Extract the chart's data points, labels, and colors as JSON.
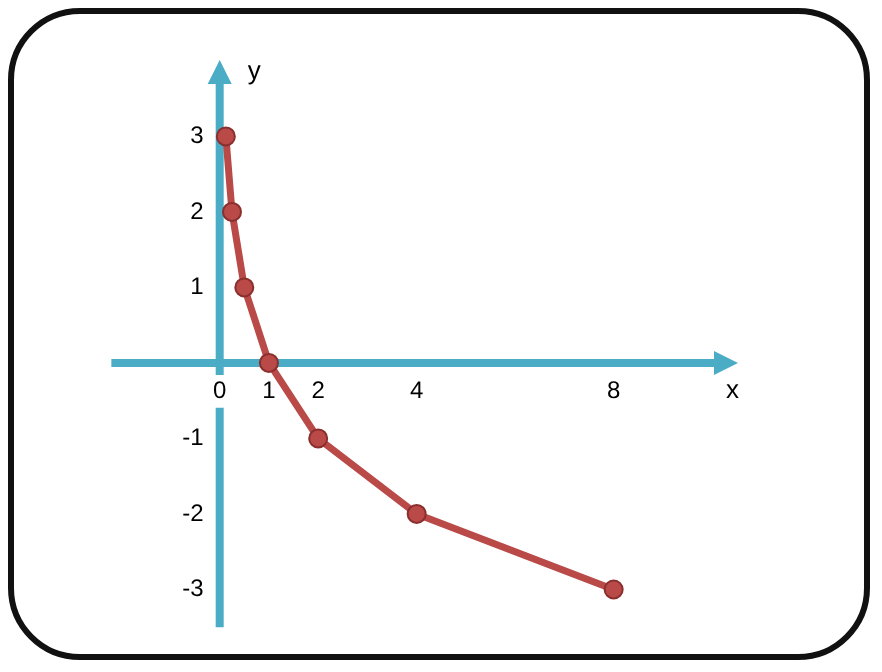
{
  "chart_data": {
    "type": "line",
    "xlabel": "x",
    "ylabel": "y",
    "x": [
      0.125,
      0.25,
      0.5,
      1,
      2,
      4,
      8
    ],
    "series": [
      {
        "color": "#b94a48",
        "values": [
          3,
          2,
          1,
          0,
          -1,
          -2,
          -3
        ]
      }
    ],
    "xlim": [
      -2.2,
      10.2
    ],
    "ylim": [
      -3.5,
      3.8
    ],
    "xticks": [
      0,
      1,
      2,
      4,
      8
    ],
    "yticks": [
      -3,
      -2,
      -1,
      1,
      2,
      3
    ],
    "marker": "circle",
    "line_style": "solid",
    "grid": false,
    "legend": false
  }
}
